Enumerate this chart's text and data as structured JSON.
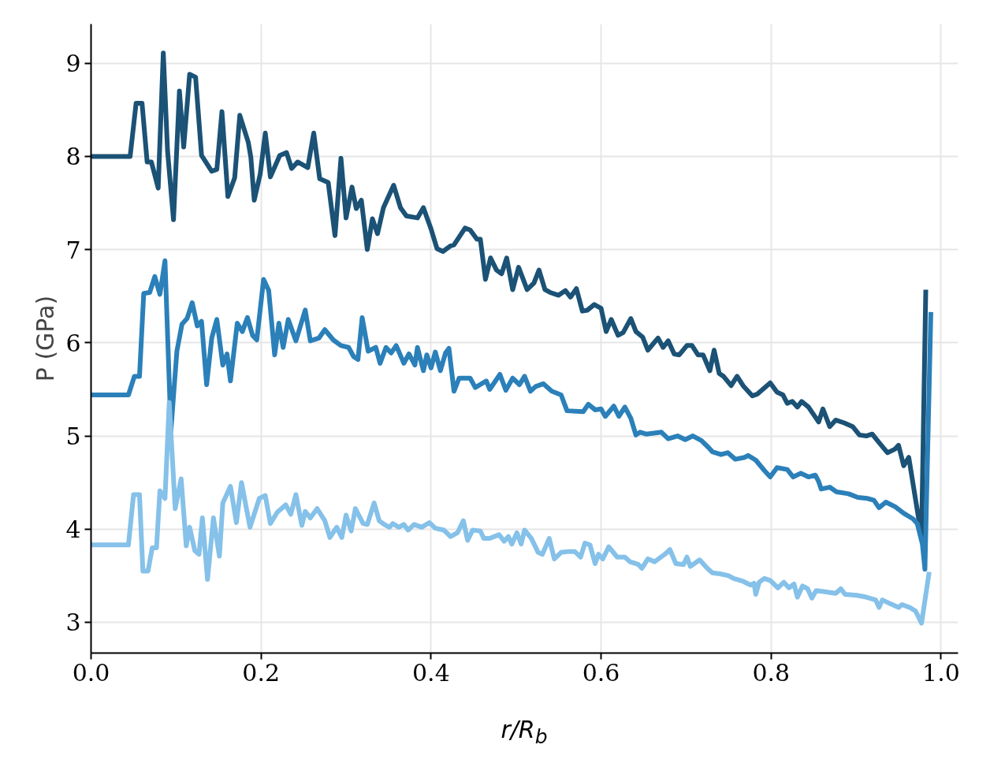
{
  "chart_data": {
    "type": "line",
    "xlabel": "r/R$_{b}$",
    "ylabel": "P (GPa)",
    "xlim": [
      0,
      1.02
    ],
    "ylim": [
      2.67,
      9.42
    ],
    "xticks": [
      {
        "value": 0,
        "label": "0.0"
      },
      {
        "value": 0.2,
        "label": "0.2"
      },
      {
        "value": 0.4,
        "label": "0.4"
      },
      {
        "value": 0.6,
        "label": "0.6"
      },
      {
        "value": 0.8,
        "label": "0.8"
      },
      {
        "value": 1.0,
        "label": "1.0"
      }
    ],
    "yticks": [
      3,
      4,
      5,
      6,
      7,
      8,
      9
    ],
    "grid": true,
    "line_style": "solid",
    "marker": "none",
    "series": [
      {
        "color": "#1b5276",
        "x": [
          0,
          0.046,
          0.053,
          0.06,
          0.066,
          0.071,
          0.079,
          0.085,
          0.09,
          0.097,
          0.104,
          0.109,
          0.116,
          0.123,
          0.13,
          0.142,
          0.148,
          0.154,
          0.161,
          0.169,
          0.175,
          0.185,
          0.188,
          0.192,
          0.199,
          0.205,
          0.211,
          0.222,
          0.23,
          0.236,
          0.243,
          0.255,
          0.262,
          0.269,
          0.279,
          0.287,
          0.294,
          0.3,
          0.307,
          0.312,
          0.318,
          0.325,
          0.331,
          0.337,
          0.344,
          0.356,
          0.364,
          0.371,
          0.384,
          0.391,
          0.4,
          0.407,
          0.414,
          0.423,
          0.427,
          0.44,
          0.446,
          0.454,
          0.458,
          0.464,
          0.47,
          0.477,
          0.483,
          0.489,
          0.496,
          0.503,
          0.513,
          0.521,
          0.527,
          0.534,
          0.54,
          0.55,
          0.558,
          0.564,
          0.571,
          0.578,
          0.584,
          0.592,
          0.6,
          0.606,
          0.612,
          0.62,
          0.626,
          0.635,
          0.641,
          0.649,
          0.655,
          0.667,
          0.673,
          0.679,
          0.686,
          0.692,
          0.701,
          0.707,
          0.714,
          0.72,
          0.728,
          0.733,
          0.739,
          0.744,
          0.753,
          0.76,
          0.767,
          0.778,
          0.784,
          0.799,
          0.807,
          0.814,
          0.819,
          0.825,
          0.831,
          0.836,
          0.844,
          0.853,
          0.856,
          0.861,
          0.869,
          0.876,
          0.886,
          0.896,
          0.904,
          0.912,
          0.919,
          0.926,
          0.937,
          0.946,
          0.95,
          0.956,
          0.962,
          0.977,
          0.982
        ],
        "values": [
          8.0,
          8.0,
          8.57,
          8.57,
          7.94,
          7.94,
          7.66,
          9.11,
          8.06,
          7.32,
          8.7,
          8.1,
          8.88,
          8.85,
          8.01,
          7.84,
          7.86,
          8.48,
          7.57,
          7.77,
          8.44,
          8.15,
          7.99,
          7.53,
          7.81,
          8.25,
          7.78,
          8.01,
          8.04,
          7.87,
          7.94,
          7.88,
          8.25,
          7.76,
          7.72,
          7.15,
          7.98,
          7.34,
          7.67,
          7.44,
          7.53,
          7.0,
          7.33,
          7.17,
          7.45,
          7.69,
          7.45,
          7.36,
          7.34,
          7.45,
          7.22,
          7.01,
          6.98,
          7.04,
          7.05,
          7.23,
          7.21,
          7.11,
          7.11,
          6.68,
          6.91,
          6.78,
          6.74,
          6.91,
          6.57,
          6.81,
          6.57,
          6.64,
          6.78,
          6.57,
          6.54,
          6.51,
          6.56,
          6.49,
          6.58,
          6.34,
          6.35,
          6.41,
          6.37,
          6.12,
          6.25,
          6.08,
          6.11,
          6.26,
          6.12,
          6.06,
          5.92,
          6.05,
          5.95,
          6.02,
          5.88,
          5.87,
          5.97,
          5.97,
          5.87,
          5.87,
          5.7,
          5.92,
          5.67,
          5.64,
          5.54,
          5.64,
          5.54,
          5.43,
          5.45,
          5.57,
          5.47,
          5.44,
          5.35,
          5.37,
          5.31,
          5.37,
          5.31,
          5.19,
          5.15,
          5.29,
          5.1,
          5.17,
          5.14,
          5.1,
          5.01,
          5.0,
          5.02,
          4.94,
          4.82,
          4.86,
          4.9,
          4.68,
          4.77,
          3.92,
          6.57
        ]
      },
      {
        "color": "#2b80b9",
        "x": [
          0,
          0.044,
          0.051,
          0.057,
          0.062,
          0.069,
          0.075,
          0.081,
          0.087,
          0.094,
          0.101,
          0.107,
          0.113,
          0.119,
          0.125,
          0.13,
          0.136,
          0.142,
          0.148,
          0.155,
          0.16,
          0.164,
          0.172,
          0.178,
          0.184,
          0.19,
          0.195,
          0.203,
          0.209,
          0.216,
          0.221,
          0.226,
          0.232,
          0.241,
          0.252,
          0.258,
          0.268,
          0.275,
          0.285,
          0.294,
          0.303,
          0.309,
          0.314,
          0.319,
          0.326,
          0.335,
          0.34,
          0.347,
          0.353,
          0.359,
          0.368,
          0.374,
          0.381,
          0.384,
          0.391,
          0.395,
          0.4,
          0.405,
          0.411,
          0.417,
          0.421,
          0.427,
          0.433,
          0.446,
          0.452,
          0.465,
          0.469,
          0.481,
          0.488,
          0.496,
          0.504,
          0.51,
          0.517,
          0.523,
          0.532,
          0.542,
          0.553,
          0.56,
          0.579,
          0.585,
          0.593,
          0.6,
          0.605,
          0.615,
          0.621,
          0.628,
          0.635,
          0.641,
          0.646,
          0.653,
          0.671,
          0.679,
          0.69,
          0.699,
          0.708,
          0.718,
          0.726,
          0.731,
          0.741,
          0.749,
          0.758,
          0.769,
          0.773,
          0.782,
          0.792,
          0.799,
          0.807,
          0.819,
          0.826,
          0.835,
          0.844,
          0.852,
          0.856,
          0.859,
          0.869,
          0.877,
          0.891,
          0.902,
          0.913,
          0.921,
          0.927,
          0.935,
          0.946,
          0.956,
          0.967,
          0.972,
          0.978,
          0.981,
          0.988
        ],
        "values": [
          5.44,
          5.44,
          5.64,
          5.64,
          6.53,
          6.54,
          6.71,
          6.52,
          6.88,
          5.06,
          5.91,
          6.2,
          6.26,
          6.43,
          6.18,
          6.23,
          5.55,
          6.05,
          6.25,
          5.76,
          5.88,
          5.59,
          6.21,
          6.12,
          6.27,
          6.08,
          6.03,
          6.68,
          6.56,
          5.87,
          6.21,
          5.95,
          6.25,
          6.02,
          6.35,
          6.02,
          6.05,
          6.14,
          6.03,
          5.97,
          5.95,
          5.85,
          5.82,
          6.27,
          5.91,
          5.95,
          5.78,
          5.95,
          5.89,
          5.97,
          5.78,
          5.88,
          5.76,
          5.95,
          5.7,
          5.87,
          5.73,
          5.9,
          5.7,
          5.89,
          5.94,
          5.48,
          5.62,
          5.62,
          5.52,
          5.59,
          5.5,
          5.66,
          5.49,
          5.62,
          5.55,
          5.64,
          5.48,
          5.53,
          5.56,
          5.48,
          5.44,
          5.27,
          5.26,
          5.34,
          5.28,
          5.29,
          5.21,
          5.32,
          5.21,
          5.31,
          5.19,
          5.01,
          5.04,
          5.02,
          5.04,
          4.97,
          5.0,
          4.96,
          5.0,
          4.95,
          4.88,
          4.83,
          4.8,
          4.82,
          4.75,
          4.77,
          4.79,
          4.74,
          4.63,
          4.56,
          4.66,
          4.64,
          4.56,
          4.6,
          4.56,
          4.58,
          4.51,
          4.43,
          4.45,
          4.4,
          4.38,
          4.34,
          4.33,
          4.31,
          4.23,
          4.29,
          4.24,
          4.17,
          4.11,
          4.06,
          3.84,
          3.57,
          6.33
        ]
      },
      {
        "color": "#85c1e9",
        "x": [
          0,
          0.044,
          0.05,
          0.057,
          0.061,
          0.067,
          0.072,
          0.077,
          0.081,
          0.087,
          0.092,
          0.099,
          0.106,
          0.112,
          0.116,
          0.122,
          0.127,
          0.131,
          0.137,
          0.144,
          0.151,
          0.155,
          0.164,
          0.171,
          0.177,
          0.187,
          0.198,
          0.205,
          0.211,
          0.219,
          0.229,
          0.235,
          0.241,
          0.248,
          0.252,
          0.258,
          0.266,
          0.275,
          0.281,
          0.289,
          0.295,
          0.3,
          0.306,
          0.311,
          0.32,
          0.325,
          0.333,
          0.339,
          0.345,
          0.351,
          0.355,
          0.362,
          0.368,
          0.373,
          0.38,
          0.389,
          0.398,
          0.405,
          0.415,
          0.423,
          0.431,
          0.438,
          0.443,
          0.449,
          0.458,
          0.462,
          0.469,
          0.48,
          0.486,
          0.491,
          0.495,
          0.501,
          0.506,
          0.51,
          0.518,
          0.526,
          0.531,
          0.539,
          0.545,
          0.553,
          0.562,
          0.569,
          0.576,
          0.581,
          0.587,
          0.593,
          0.597,
          0.602,
          0.609,
          0.619,
          0.628,
          0.634,
          0.644,
          0.648,
          0.655,
          0.663,
          0.675,
          0.681,
          0.688,
          0.697,
          0.701,
          0.705,
          0.716,
          0.725,
          0.731,
          0.74,
          0.75,
          0.756,
          0.767,
          0.776,
          0.78,
          0.782,
          0.786,
          0.792,
          0.799,
          0.808,
          0.815,
          0.821,
          0.827,
          0.831,
          0.835,
          0.837,
          0.843,
          0.848,
          0.853,
          0.862,
          0.876,
          0.882,
          0.887,
          0.901,
          0.912,
          0.923,
          0.927,
          0.931,
          0.94,
          0.95,
          0.954,
          0.963,
          0.97,
          0.977,
          0.986
        ],
        "values": [
          3.83,
          3.83,
          4.37,
          4.37,
          3.55,
          3.55,
          3.8,
          3.8,
          4.41,
          4.33,
          5.36,
          4.22,
          4.54,
          3.82,
          4.02,
          3.77,
          3.73,
          4.12,
          3.46,
          4.12,
          3.71,
          4.28,
          4.46,
          4.07,
          4.5,
          4.02,
          4.33,
          4.36,
          4.06,
          4.18,
          4.26,
          4.16,
          4.37,
          4.04,
          4.19,
          4.12,
          4.22,
          4.09,
          3.91,
          4.02,
          3.91,
          4.15,
          3.98,
          4.22,
          4.06,
          4.05,
          4.28,
          4.09,
          4.05,
          4.02,
          4.06,
          4.02,
          4.05,
          3.99,
          4.05,
          4.02,
          4.07,
          4.01,
          3.99,
          3.92,
          3.96,
          4.09,
          3.88,
          3.99,
          3.98,
          3.9,
          3.9,
          3.94,
          3.87,
          3.92,
          3.84,
          3.96,
          3.84,
          3.99,
          3.9,
          3.75,
          3.73,
          3.9,
          3.68,
          3.75,
          3.76,
          3.76,
          3.7,
          3.85,
          3.83,
          3.63,
          3.73,
          3.68,
          3.81,
          3.7,
          3.7,
          3.65,
          3.62,
          3.58,
          3.68,
          3.65,
          3.73,
          3.78,
          3.63,
          3.62,
          3.7,
          3.6,
          3.67,
          3.58,
          3.53,
          3.52,
          3.5,
          3.47,
          3.44,
          3.4,
          3.42,
          3.3,
          3.43,
          3.47,
          3.45,
          3.37,
          3.43,
          3.37,
          3.41,
          3.27,
          3.35,
          3.39,
          3.36,
          3.26,
          3.34,
          3.33,
          3.31,
          3.36,
          3.3,
          3.29,
          3.27,
          3.24,
          3.16,
          3.24,
          3.2,
          3.16,
          3.19,
          3.16,
          3.12,
          2.99,
          3.54
        ]
      }
    ]
  }
}
